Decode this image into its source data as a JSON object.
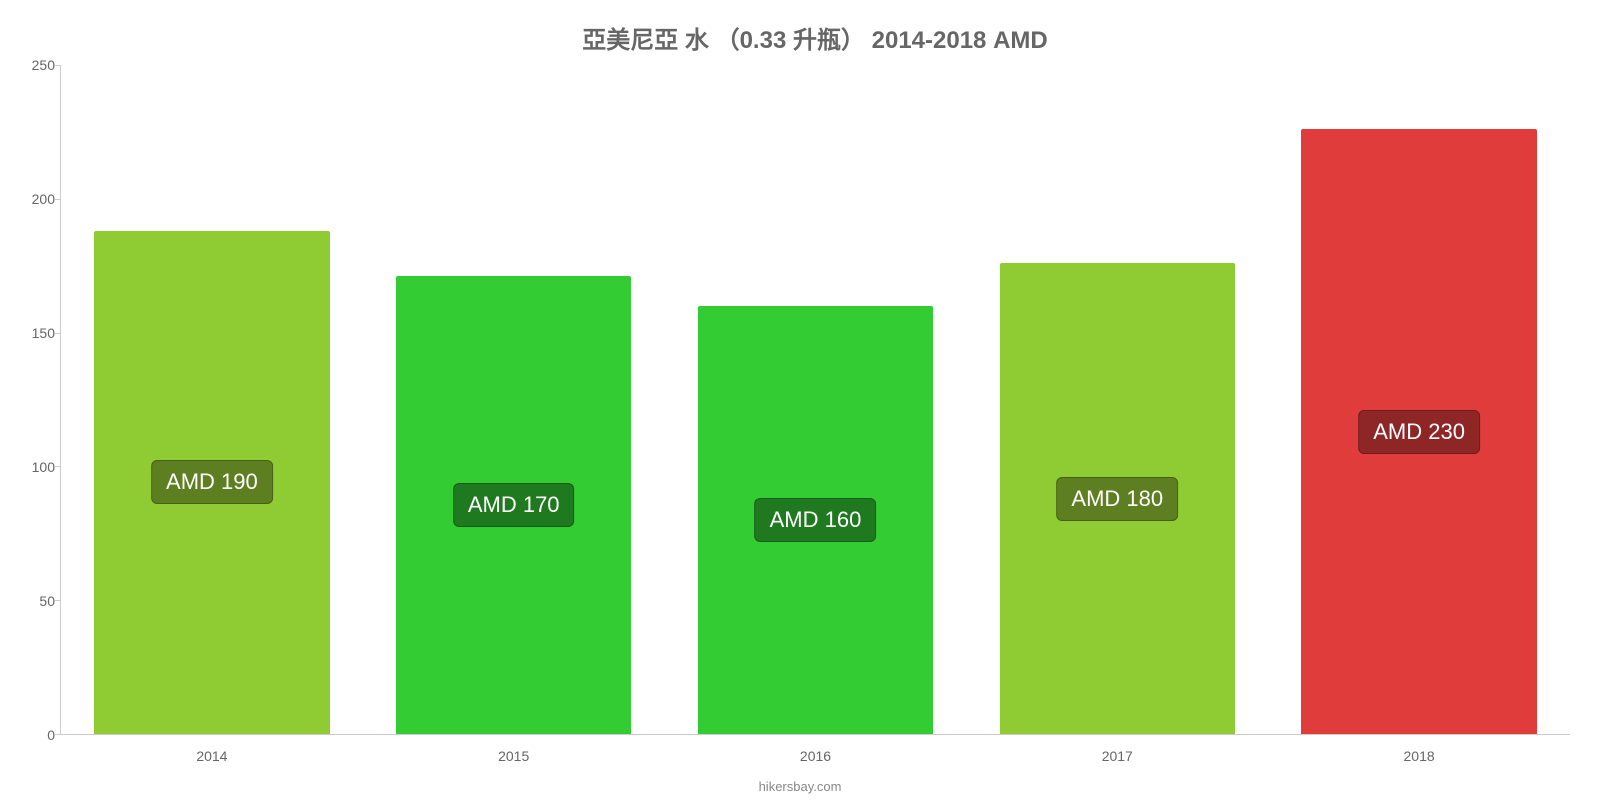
{
  "chart": {
    "type": "bar",
    "title": "亞美尼亞 水 （0.33 升瓶） 2014-2018 AMD",
    "title_color": "#666666",
    "title_fontsize": 24,
    "background_color": "#ffffff",
    "axis_line_color": "#cccccc",
    "axis_label_color": "#666666",
    "axis_label_fontsize": 14,
    "ylim": [
      0,
      250
    ],
    "ytick_step": 50,
    "yticks": [
      0,
      50,
      100,
      150,
      200,
      250
    ],
    "bar_width_pct": 78,
    "categories": [
      "2014",
      "2015",
      "2016",
      "2017",
      "2018"
    ],
    "values": [
      190,
      170,
      160,
      180,
      230
    ],
    "value_labels": [
      "AMD 190",
      "AMD 170",
      "AMD 160",
      "AMD 180",
      "AMD 230"
    ],
    "bar_colors": [
      "#8fcc33",
      "#33cc33",
      "#33cc33",
      "#8fcc33",
      "#e13c3c"
    ],
    "bar_actual_heights": [
      188,
      171,
      160,
      176,
      226
    ],
    "label_box_colors": [
      "#5e7f21",
      "#1f7a1f",
      "#1f7a1f",
      "#5e7f21",
      "#8f2626"
    ],
    "label_text_color": "#ffffff",
    "label_fontsize": 22,
    "footer": "hikersbay.com",
    "footer_color": "#888888",
    "footer_fontsize": 13
  }
}
